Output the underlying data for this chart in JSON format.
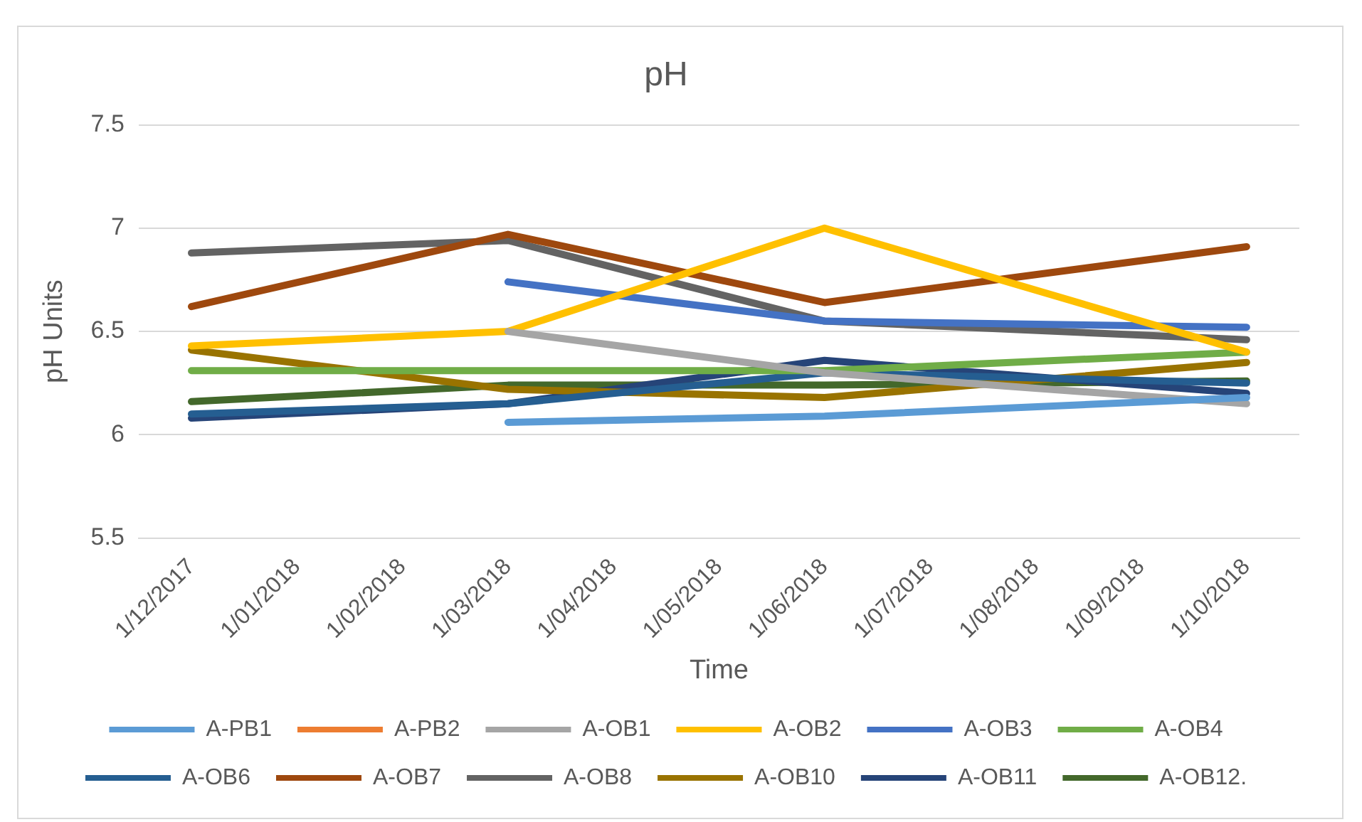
{
  "chart_data": {
    "type": "line",
    "title": "pH",
    "xlabel": "Time",
    "ylabel": "pH Units",
    "categories": [
      "1/12/2017",
      "1/01/2018",
      "1/02/2018",
      "1/03/2018",
      "1/04/2018",
      "1/05/2018",
      "1/06/2018",
      "1/07/2018",
      "1/08/2018",
      "1/09/2018",
      "1/10/2018"
    ],
    "ylim": [
      5.5,
      7.5
    ],
    "yticks": [
      5.5,
      6,
      6.5,
      7,
      7.5
    ],
    "grid": "y",
    "legend": "bottom",
    "marker": "none",
    "line_style": "solid",
    "series": [
      {
        "name": "A-PB1",
        "color": "#5b9bd5",
        "values": [
          null,
          null,
          null,
          6.06,
          null,
          null,
          6.09,
          null,
          null,
          null,
          6.18
        ]
      },
      {
        "name": "A-PB2",
        "color": "#ed7d31",
        "values": [
          null,
          null,
          null,
          null,
          null,
          null,
          null,
          null,
          null,
          null,
          null
        ]
      },
      {
        "name": "A-OB1",
        "color": "#a5a5a5",
        "values": [
          null,
          null,
          null,
          6.5,
          null,
          null,
          6.3,
          null,
          null,
          null,
          6.15
        ]
      },
      {
        "name": "A-OB2",
        "color": "#ffc000",
        "values": [
          6.43,
          null,
          null,
          6.5,
          null,
          null,
          7.0,
          null,
          null,
          null,
          6.4
        ]
      },
      {
        "name": "A-OB3",
        "color": "#4472c4",
        "values": [
          null,
          null,
          null,
          6.74,
          null,
          null,
          6.55,
          null,
          null,
          null,
          6.52
        ]
      },
      {
        "name": "A-OB4",
        "color": "#70ad47",
        "values": [
          6.31,
          null,
          null,
          6.31,
          null,
          null,
          6.31,
          null,
          null,
          null,
          6.4
        ]
      },
      {
        "name": "A-OB6",
        "color": "#255e91",
        "values": [
          6.1,
          null,
          null,
          6.15,
          null,
          null,
          6.3,
          null,
          null,
          null,
          6.25
        ]
      },
      {
        "name": "A-OB7",
        "color": "#9e480e",
        "values": [
          6.62,
          null,
          null,
          6.97,
          null,
          null,
          6.64,
          null,
          null,
          null,
          6.91
        ]
      },
      {
        "name": "A-OB8",
        "color": "#636363",
        "values": [
          6.88,
          null,
          null,
          6.94,
          null,
          null,
          6.55,
          null,
          null,
          null,
          6.46
        ]
      },
      {
        "name": "A-OB10",
        "color": "#997300",
        "values": [
          6.41,
          null,
          null,
          6.22,
          null,
          null,
          6.18,
          null,
          null,
          null,
          6.35
        ]
      },
      {
        "name": "A-OB11",
        "color": "#264478",
        "values": [
          6.08,
          null,
          null,
          6.15,
          null,
          null,
          6.36,
          null,
          null,
          null,
          6.2
        ]
      },
      {
        "name": "A-OB12.",
        "color": "#43682b",
        "values": [
          6.16,
          null,
          null,
          6.24,
          null,
          null,
          6.24,
          null,
          null,
          null,
          6.26
        ]
      }
    ]
  }
}
